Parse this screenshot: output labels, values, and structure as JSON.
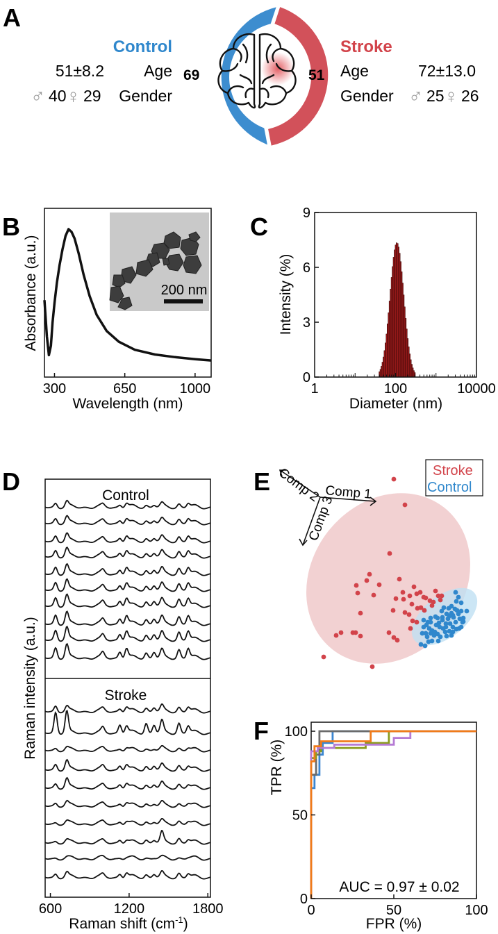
{
  "panels": {
    "a": "A",
    "b": "B",
    "c": "C",
    "d": "D",
    "e": "E",
    "f": "F"
  },
  "colors": {
    "control": "#2f87cc",
    "stroke": "#d2434a",
    "ring_control": "#3d8dcf",
    "ring_stroke": "#d2515a"
  },
  "panel_a": {
    "control_title": "Control",
    "stroke_title": "Stroke",
    "control_count": "69",
    "stroke_count": "51",
    "age_label": "Age",
    "gender_label": "Gender",
    "control_age": "51±8.2",
    "stroke_age": "72±13.0",
    "control_male": "40",
    "control_female": "29",
    "stroke_male": "25",
    "stroke_female": "26",
    "male_symbol": "♂",
    "female_symbol": "♀"
  },
  "chart_data": [
    {
      "type": "line",
      "title": "",
      "xlabel": "Wavelength (nm)",
      "ylabel": "Absorbance (a.u.)",
      "xlim": [
        250,
        1080
      ],
      "xticks": [
        300,
        650,
        1000
      ],
      "series": [
        {
          "x": [
            250,
            262,
            272,
            282,
            290,
            300,
            312,
            325,
            340,
            355,
            370,
            385,
            400,
            420,
            445,
            475,
            510,
            560,
            620,
            700,
            800,
            900,
            1000,
            1080
          ],
          "values": [
            0.47,
            0.2,
            0.06,
            0.13,
            0.3,
            0.45,
            0.6,
            0.73,
            0.85,
            0.95,
            1.0,
            0.98,
            0.93,
            0.82,
            0.66,
            0.5,
            0.36,
            0.24,
            0.16,
            0.1,
            0.065,
            0.045,
            0.03,
            0.02
          ]
        }
      ],
      "inset": {
        "scale_bar_label": "200 nm"
      }
    },
    {
      "type": "bar",
      "title": "",
      "xlabel": "Diameter (nm)",
      "ylabel": "Intensity (%)",
      "xscale": "log",
      "xlim": [
        1,
        10000
      ],
      "ylim": [
        0,
        9
      ],
      "xticks": [
        1,
        100,
        10000
      ],
      "yticks": [
        0,
        3,
        6,
        9
      ],
      "bin_center_of_peak": 108,
      "peak_value": 7.35,
      "bins_per_decade": 40,
      "x_range_nonzero": [
        40,
        300
      ]
    },
    {
      "type": "line",
      "title": "",
      "xlabel": "Raman shift (cm-1)",
      "xlabel_main": "Raman shift (cm",
      "xlabel_sup": "-1",
      "xlabel_end": ")",
      "ylabel": "Raman intensity (a.u.)",
      "xlim": [
        560,
        1820
      ],
      "xticks": [
        600,
        1200,
        1800
      ],
      "groups": [
        {
          "name": "Control",
          "traces": 10,
          "peaks_cm1": [
            640,
            725,
            1000,
            1130,
            1180,
            1330,
            1390,
            1450,
            1580,
            1650
          ]
        },
        {
          "name": "Stroke",
          "traces": 10,
          "peaks_cm1": [
            640,
            725,
            1000,
            1130,
            1180,
            1330,
            1390,
            1450,
            1580,
            1650
          ]
        }
      ]
    },
    {
      "type": "scatter",
      "title": "",
      "axes_labels": [
        "Comp 1",
        "Comp 2",
        "Comp 3"
      ],
      "legend": [
        "Stroke",
        "Control"
      ],
      "legend_position": "top-right",
      "series": [
        {
          "name": "Stroke",
          "points": [
            [
              567,
              690
            ],
            [
              583,
              727
            ],
            [
              561,
              797
            ],
            [
              575,
              834
            ],
            [
              580,
              853
            ],
            [
              590,
              858
            ],
            [
              596,
              845
            ],
            [
              600,
              855
            ],
            [
              605,
              853
            ],
            [
              610,
              860
            ],
            [
              613,
              861
            ],
            [
              619,
              865
            ],
            [
              624,
              867
            ],
            [
              627,
              851
            ],
            [
              631,
              858
            ],
            [
              636,
              858
            ],
            [
              634,
              864
            ],
            [
              622,
              872
            ],
            [
              593,
              870
            ],
            [
              570,
              862
            ],
            [
              581,
              863
            ],
            [
              583,
              882
            ],
            [
              566,
              879
            ],
            [
              546,
              842
            ],
            [
              538,
              857
            ],
            [
              532,
              827
            ],
            [
              528,
              836
            ],
            [
              513,
              843
            ],
            [
              515,
              854
            ],
            [
              519,
              883
            ],
            [
              508,
              911
            ],
            [
              512,
              911
            ],
            [
              519,
              916
            ],
            [
              484,
              915
            ],
            [
              491,
              911
            ],
            [
              466,
              946
            ],
            [
              536,
              960
            ],
            [
              560,
              911
            ],
            [
              567,
              918
            ],
            [
              572,
              922
            ],
            [
              589,
              885
            ],
            [
              601,
              876
            ],
            [
              606,
              875
            ],
            [
              611,
              879
            ],
            [
              600,
              896
            ],
            [
              591,
              905
            ],
            [
              594,
              894
            ]
          ]
        },
        {
          "name": "Control",
          "points": [
            [
              656,
              853
            ],
            [
              660,
              860
            ],
            [
              657,
              866
            ],
            [
              664,
              868
            ],
            [
              658,
              879
            ],
            [
              650,
              873
            ],
            [
              652,
              886
            ],
            [
              647,
              887
            ],
            [
              643,
              884
            ],
            [
              636,
              880
            ],
            [
              630,
              890
            ],
            [
              633,
              903
            ],
            [
              637,
              893
            ],
            [
              642,
              898
            ],
            [
              648,
              898
            ],
            [
              652,
              903
            ],
            [
              656,
              896
            ],
            [
              662,
              891
            ],
            [
              667,
              895
            ],
            [
              672,
              880
            ],
            [
              664,
              880
            ],
            [
              655,
              877
            ],
            [
              646,
              876
            ],
            [
              639,
              875
            ],
            [
              627,
              888
            ],
            [
              620,
              890
            ],
            [
              616,
              896
            ],
            [
              610,
              893
            ],
            [
              610,
              903
            ],
            [
              614,
              900
            ],
            [
              618,
              905
            ],
            [
              622,
              908
            ],
            [
              626,
              910
            ],
            [
              628,
              900
            ],
            [
              632,
              897
            ],
            [
              638,
              905
            ],
            [
              642,
              903
            ],
            [
              647,
              909
            ],
            [
              652,
              910
            ],
            [
              657,
              906
            ],
            [
              661,
              905
            ],
            [
              664,
              903
            ],
            [
              666,
              896
            ],
            [
              667,
              890
            ],
            [
              630,
              913
            ],
            [
              620,
              912
            ],
            [
              613,
              912
            ],
            [
              608,
              912
            ],
            [
              606,
              928
            ],
            [
              612,
              930
            ],
            [
              617,
              924
            ],
            [
              622,
              923
            ],
            [
              631,
              923
            ],
            [
              634,
              917
            ],
            [
              643,
              916
            ],
            [
              650,
              915
            ],
            [
              641,
              910
            ],
            [
              625,
              915
            ],
            [
              615,
              917
            ],
            [
              620,
              896
            ],
            [
              637,
              889
            ],
            [
              645,
              891
            ],
            [
              653,
              889
            ],
            [
              660,
              884
            ],
            [
              650,
              883
            ]
          ]
        }
      ]
    },
    {
      "type": "line",
      "title": "",
      "xlabel": "FPR (%)",
      "ylabel": "TPR (%)",
      "xlim": [
        0,
        100
      ],
      "ylim": [
        0,
        100
      ],
      "xticks": [
        0,
        50,
        100
      ],
      "yticks": [
        0,
        50,
        100
      ],
      "annotation": "AUC = 0.97 ± 0.02",
      "series": [
        {
          "color": "#f07b1a",
          "x": [
            0,
            0,
            2,
            2,
            6,
            6,
            36,
            36,
            100
          ],
          "values": [
            0,
            82,
            82,
            91,
            91,
            94,
            94,
            100,
            100
          ]
        },
        {
          "color": "#3a86d1",
          "x": [
            0,
            0,
            2,
            2,
            5,
            5,
            7,
            7,
            13,
            13,
            100
          ],
          "values": [
            0,
            66,
            66,
            74,
            74,
            86,
            86,
            93,
            93,
            100,
            100
          ]
        },
        {
          "color": "#6b6b6b",
          "x": [
            0,
            0,
            3,
            3,
            5,
            5,
            100
          ],
          "values": [
            0,
            74,
            74,
            86,
            86,
            100,
            100
          ]
        },
        {
          "color": "#8a9b1d",
          "x": [
            0,
            0,
            3,
            3,
            6,
            6,
            33,
            33,
            47,
            47,
            100
          ],
          "values": [
            0,
            84,
            84,
            88,
            88,
            90,
            90,
            93,
            93,
            100,
            100
          ]
        },
        {
          "color": "#b57bd4",
          "x": [
            0,
            0,
            4,
            4,
            14,
            14,
            50,
            50,
            60,
            60,
            100
          ],
          "values": [
            0,
            88,
            88,
            90,
            90,
            92,
            92,
            96,
            96,
            100,
            100
          ]
        }
      ]
    }
  ]
}
